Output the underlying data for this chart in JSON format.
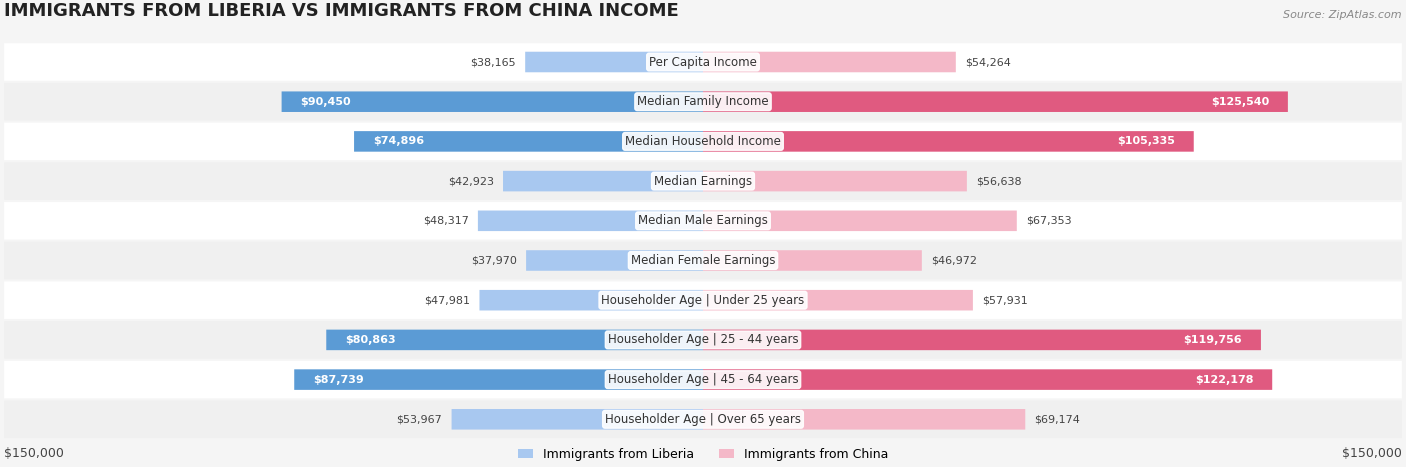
{
  "title": "IMMIGRANTS FROM LIBERIA VS IMMIGRANTS FROM CHINA INCOME",
  "source": "Source: ZipAtlas.com",
  "categories": [
    "Per Capita Income",
    "Median Family Income",
    "Median Household Income",
    "Median Earnings",
    "Median Male Earnings",
    "Median Female Earnings",
    "Householder Age | Under 25 years",
    "Householder Age | 25 - 44 years",
    "Householder Age | 45 - 64 years",
    "Householder Age | Over 65 years"
  ],
  "liberia_values": [
    38165,
    90450,
    74896,
    42923,
    48317,
    37970,
    47981,
    80863,
    87739,
    53967
  ],
  "china_values": [
    54264,
    125540,
    105335,
    56638,
    67353,
    46972,
    57931,
    119756,
    122178,
    69174
  ],
  "liberia_labels": [
    "$38,165",
    "$90,450",
    "$74,896",
    "$42,923",
    "$48,317",
    "$37,970",
    "$47,981",
    "$80,863",
    "$87,739",
    "$53,967"
  ],
  "china_labels": [
    "$54,264",
    "$125,540",
    "$105,335",
    "$56,638",
    "$67,353",
    "$46,972",
    "$57,931",
    "$119,756",
    "$122,178",
    "$69,174"
  ],
  "liberia_color_light": "#a8c8f0",
  "liberia_color_dark": "#5b9bd5",
  "china_color_light": "#f4b8c8",
  "china_color_dark": "#e05a80",
  "max_value": 150000,
  "background_color": "#f5f5f5",
  "row_bg_color": "#ffffff",
  "row_alt_bg_color": "#f0f0f0",
  "label_fontsize": 9,
  "title_fontsize": 13,
  "axis_label": "$150,000"
}
